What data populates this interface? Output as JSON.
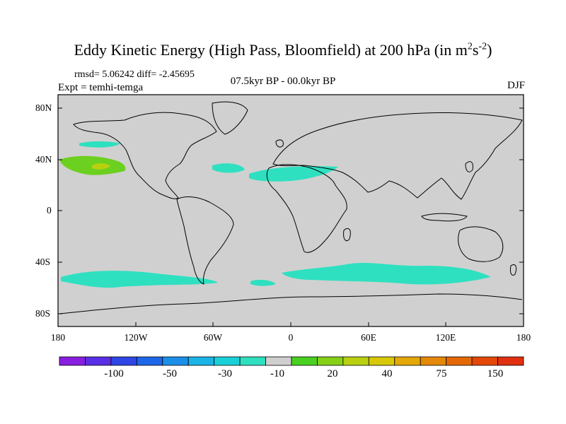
{
  "title": {
    "main": "Eddy Kinetic Energy (High Pass, Bloomfield) at 200 hPa (in m",
    "sup1": "2",
    "mid": "s",
    "sup2": "-2",
    "end": ")"
  },
  "stats": "rmsd= 5.06242 diff= -2.45695",
  "experiment": "Expt = temhi-temga",
  "period": "07.5kyr BP - 00.0kyr BP",
  "season": "DJF",
  "lat_ticks": [
    "80N",
    "40N",
    "0",
    "40S",
    "80S"
  ],
  "lon_ticks": [
    "180",
    "120W",
    "60W",
    "0",
    "60E",
    "120E",
    "180"
  ],
  "colorbar": {
    "colors": [
      "#8a1ee0",
      "#5a2ee6",
      "#2e46e6",
      "#1e66e8",
      "#1c8fe8",
      "#1ab4e6",
      "#1ad0d8",
      "#2ee0c0",
      "#cfcfcf",
      "#4ad020",
      "#86d016",
      "#b8d010",
      "#d8c808",
      "#e4a808",
      "#e48808",
      "#e46808",
      "#e44808",
      "#e03010"
    ],
    "labels": [
      "-100",
      "-50",
      "-30",
      "-10",
      "20",
      "40",
      "75",
      "150"
    ]
  },
  "colors": {
    "land_ocean": "#d0d0d0",
    "anomaly_negative": "#2ee0c0",
    "anomaly_positive": "#6cd020",
    "anomaly_peak": "#b8d010"
  }
}
